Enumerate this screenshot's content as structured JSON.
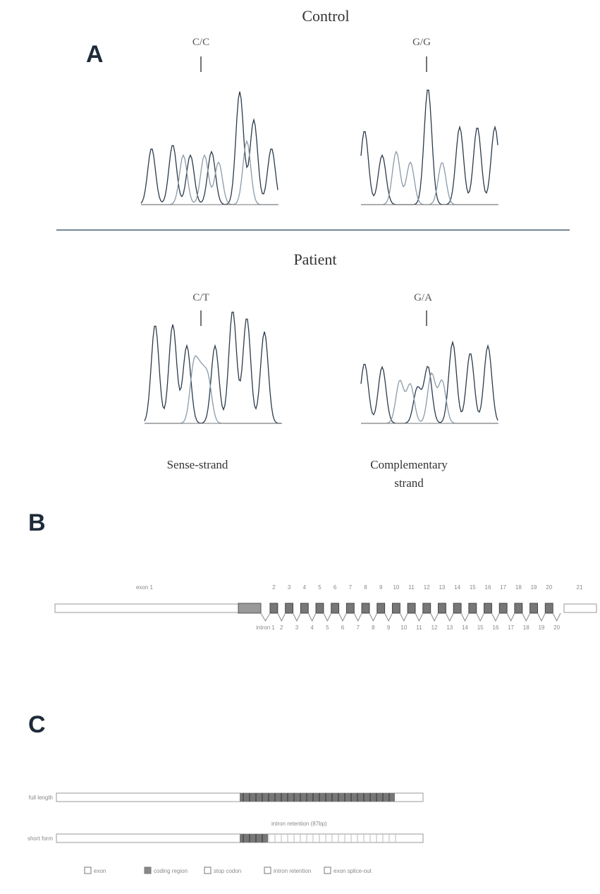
{
  "panel_a": {
    "label": "A",
    "control": {
      "title": "Control",
      "left_genotype": "C/C",
      "right_genotype": "G/G"
    },
    "patient": {
      "title": "Patient",
      "left_genotype": "C/T",
      "right_genotype": "G/A"
    },
    "left_caption": "Sense-strand",
    "right_caption": "Complementary strand"
  },
  "panel_b": {
    "label": "B",
    "exons": [
      "exon 1",
      "2",
      "3",
      "4",
      "5",
      "6",
      "7",
      "8",
      "9",
      "10",
      "11",
      "12",
      "13",
      "14",
      "15",
      "16",
      "17",
      "18",
      "19",
      "20",
      "21"
    ],
    "introns": [
      "intron 1",
      "2",
      "3",
      "4",
      "5",
      "6",
      "7",
      "8",
      "9",
      "10",
      "11",
      "12",
      "13",
      "14",
      "15",
      "16",
      "17",
      "18",
      "19",
      "20"
    ]
  },
  "panel_c": {
    "label": "C",
    "rows": [
      "full length",
      "short form"
    ],
    "annotation": "intron retention (87bp)",
    "legend": [
      "exon",
      "coding region",
      "stop codon",
      "intron retention",
      "exon splice-out"
    ]
  }
}
